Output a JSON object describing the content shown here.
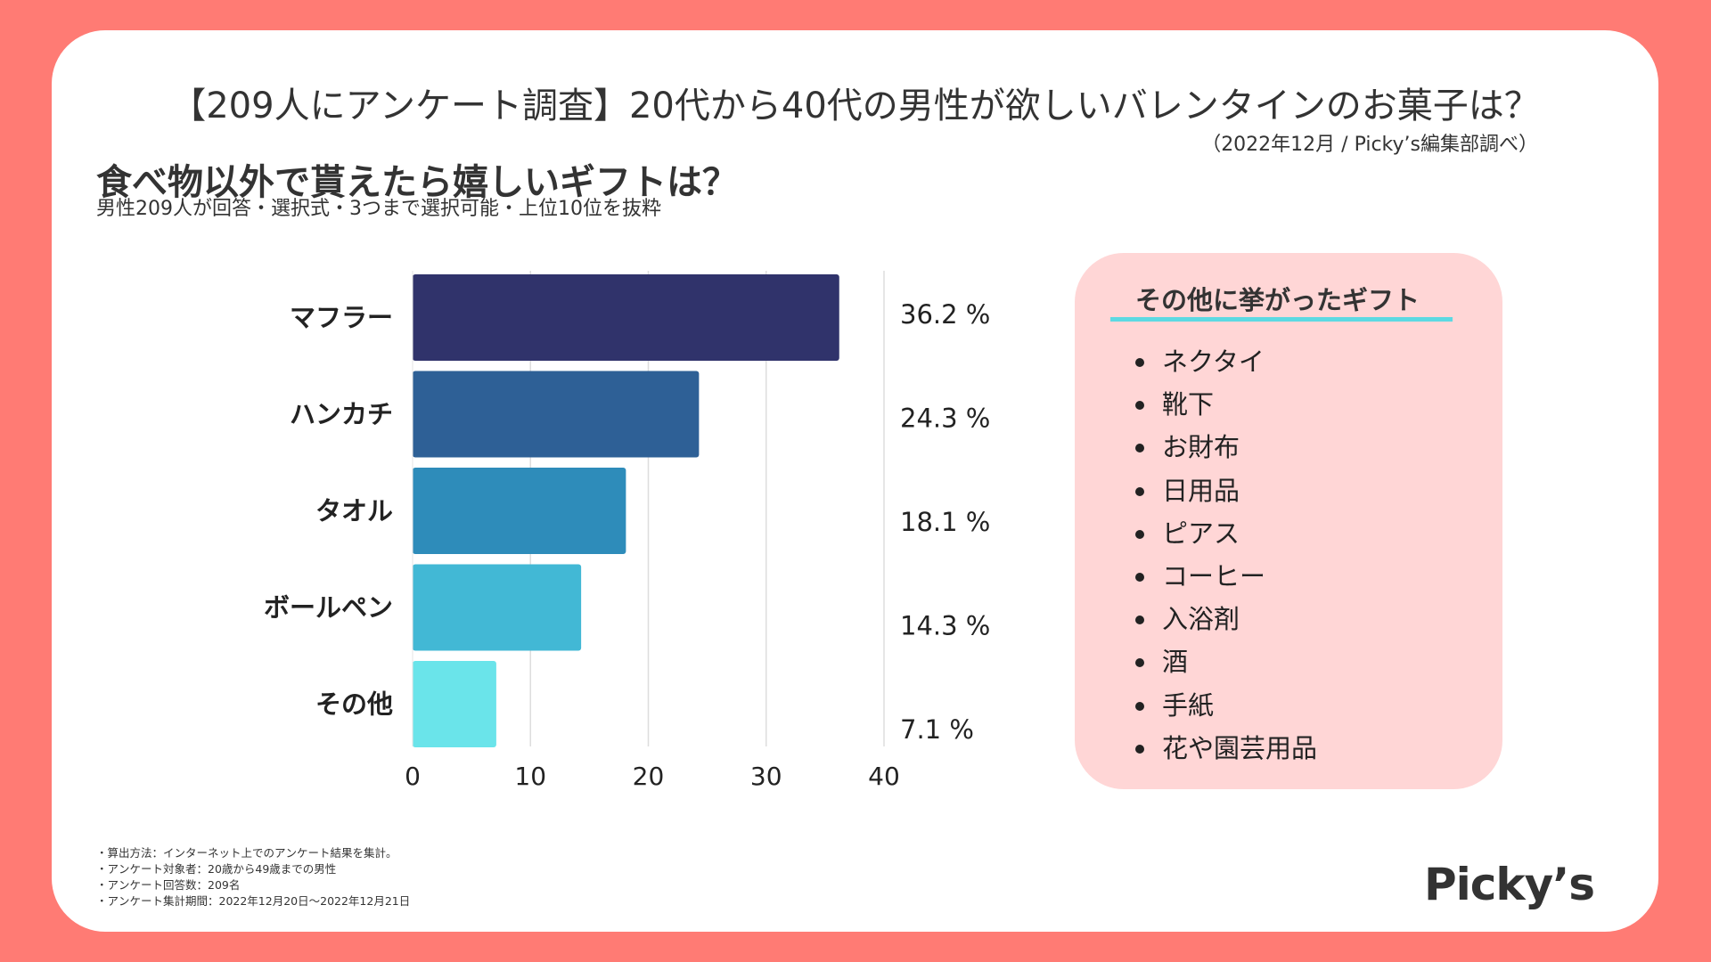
{
  "header": {
    "title": "【209人にアンケート調査】20代から40代の男性が欲しいバレンタインのお菓子は？",
    "credit": "（2022年12月 / Picky’s編集部調べ）"
  },
  "chart_data": {
    "type": "bar",
    "orientation": "horizontal",
    "title": "食べ物以外で貰えたら嬉しいギフトは？",
    "subtitle": "男性209人が回答・選択式・3つまで選択可能・上位10位を抜粋",
    "categories": [
      "マフラー",
      "ハンカチ",
      "タオル",
      "ボールペン",
      "その他"
    ],
    "values": [
      36.2,
      24.3,
      18.1,
      14.3,
      7.1
    ],
    "value_labels": [
      "36.2 %",
      "24.3 %",
      "18.1 %",
      "14.3 %",
      "7.1 %"
    ],
    "colors": [
      "#30336B",
      "#2E6096",
      "#2E8CBA",
      "#42B8D5",
      "#6AE4EA"
    ],
    "xlim": [
      0,
      40
    ],
    "xticks": [
      0,
      10,
      20,
      30,
      40
    ],
    "grid": true,
    "xlabel": "",
    "ylabel": ""
  },
  "others_panel": {
    "title": "その他に挙がったギフト",
    "items": [
      "ネクタイ",
      "靴下",
      "お財布",
      "日用品",
      "ピアス",
      "コーヒー",
      "入浴剤",
      "酒",
      "手紙",
      "花や園芸用品"
    ]
  },
  "notes": [
    "・算出方法：インターネット上でのアンケート結果を集計。",
    "・アンケート対象者：20歳から49歳までの男性",
    "・アンケート回答数：209名",
    "・アンケート集計期間：2022年12月20日〜2022年12月21日"
  ],
  "brand": "Picky’s"
}
